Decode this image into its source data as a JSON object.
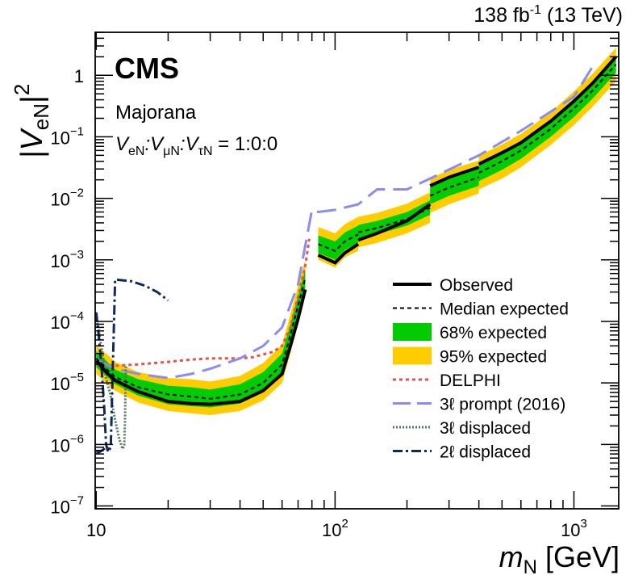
{
  "chart_data": {
    "type": "line",
    "lumi_label": {
      "main": "138 fb",
      "sup": "-1",
      "rest": " (13 TeV)"
    },
    "experiment": "CMS",
    "model_label": "Majorana",
    "coupling_label": {
      "p1": "V",
      "s1": "eN",
      "p2": ":V",
      "s2": "μN",
      "p3": ":V",
      "s3": "τN",
      "p4": " = 1:0:0"
    },
    "ylabel": {
      "main": "|V",
      "sub": "eN",
      "rest": "|",
      "sup": "2"
    },
    "xlabel": {
      "main": "m",
      "sub": "N",
      "rest": " [GeV]"
    },
    "xscale": "log",
    "yscale": "log",
    "xlim": [
      9.9,
      1540
    ],
    "ylim": [
      9e-08,
      5
    ],
    "x_ticks": [
      {
        "value": 10,
        "base": "10",
        "exp": ""
      },
      {
        "value": 100,
        "base": "10",
        "exp": "2"
      },
      {
        "value": 1000,
        "base": "10",
        "exp": "3"
      }
    ],
    "y_ticks": [
      {
        "value": 1e-07,
        "base": "10",
        "exp": "−7"
      },
      {
        "value": 1e-06,
        "base": "10",
        "exp": "−6"
      },
      {
        "value": 1e-05,
        "base": "10",
        "exp": "−5"
      },
      {
        "value": 0.0001,
        "base": "10",
        "exp": "−4"
      },
      {
        "value": 0.001,
        "base": "10",
        "exp": "−3"
      },
      {
        "value": 0.01,
        "base": "10",
        "exp": "−2"
      },
      {
        "value": 0.1,
        "base": "10",
        "exp": "−1"
      },
      {
        "value": 1,
        "base": "1",
        "exp": ""
      }
    ],
    "legend_position": "lower-right",
    "legend": [
      {
        "label": "Observed",
        "style": "solid-thick",
        "color": "#000000"
      },
      {
        "label": "Median expected",
        "style": "dashed-thin",
        "color": "#000000"
      },
      {
        "label": "68% expected",
        "style": "band",
        "color": "#00cc00"
      },
      {
        "label": "95% expected",
        "style": "band",
        "color": "#ffcc00"
      },
      {
        "label": "DELPHI",
        "style": "dotted",
        "color": "#e8524a"
      },
      {
        "label": "3ℓ prompt (2016)",
        "style": "long-dash",
        "color": "#8c8cf0"
      },
      {
        "label": "3ℓ displaced",
        "style": "fine-dotted",
        "color": "#4f7a55"
      },
      {
        "label": "2ℓ displaced",
        "style": "dash-dot",
        "color": "#0d2a5c"
      }
    ],
    "segments": [
      {
        "name": "low-mass",
        "x": [
          10,
          11,
          12,
          15,
          20,
          25,
          30,
          40,
          50,
          60,
          65,
          70,
          75
        ],
        "observed": [
          2.3e-05,
          1.5e-05,
          1.1e-05,
          7.2e-06,
          5e-06,
          4.6e-06,
          4.5e-06,
          5e-06,
          7.5e-06,
          1.4e-05,
          4e-05,
          0.00011,
          0.00033
        ],
        "expected": [
          2.5e-05,
          1.7e-05,
          1.25e-05,
          8.5e-06,
          6.5e-06,
          6e-06,
          5.5e-06,
          6.5e-06,
          1e-05,
          2e-05,
          6e-05,
          0.00018,
          0.0005
        ],
        "band68_lo": [
          1.8e-05,
          1.3e-05,
          9.5e-06,
          6.2e-06,
          4.5e-06,
          4.2e-06,
          4e-06,
          4.6e-06,
          7e-06,
          1.4e-05,
          4.2e-05,
          0.00012,
          0.00035
        ],
        "band68_hi": [
          3.3e-05,
          2.3e-05,
          1.65e-05,
          1.15e-05,
          9e-06,
          8.5e-06,
          7.8e-06,
          9.5e-06,
          1.5e-05,
          3e-05,
          9e-05,
          0.00026,
          0.0007
        ],
        "band95_lo": [
          1.4e-05,
          1e-05,
          7.5e-06,
          4.8e-06,
          3.5e-06,
          3.2e-06,
          3e-06,
          3.5e-06,
          5.2e-06,
          1e-05,
          3e-05,
          9e-05,
          0.00026
        ],
        "band95_hi": [
          4.2e-05,
          3e-05,
          2.2e-05,
          1.5e-05,
          1.2e-05,
          1.15e-05,
          1.05e-05,
          1.3e-05,
          2.1e-05,
          4.2e-05,
          0.00013,
          0.00038,
          0.001
        ]
      },
      {
        "name": "mid-mass",
        "x": [
          85,
          100,
          110,
          125
        ],
        "observed": [
          0.0012,
          0.0009,
          0.0013,
          0.0018
        ],
        "expected": [
          0.0018,
          0.0014,
          0.002,
          0.0026
        ],
        "band68_lo": [
          0.0013,
          0.001,
          0.00145,
          0.0019
        ],
        "band68_hi": [
          0.0025,
          0.002,
          0.0028,
          0.0036
        ],
        "band95_lo": [
          0.001,
          0.00075,
          0.0011,
          0.0014
        ],
        "band95_hi": [
          0.0034,
          0.0027,
          0.0038,
          0.005
        ]
      },
      {
        "name": "high-mass-1",
        "x": [
          125,
          150,
          200,
          250
        ],
        "observed": [
          0.0021,
          0.0027,
          0.0043,
          0.008
        ],
        "expected": [
          0.0028,
          0.0033,
          0.0046,
          0.007
        ],
        "band68_lo": [
          0.0022,
          0.0026,
          0.0036,
          0.0054
        ],
        "band68_hi": [
          0.0037,
          0.0043,
          0.006,
          0.0093
        ],
        "band95_lo": [
          0.0016,
          0.0019,
          0.0027,
          0.004
        ],
        "band95_hi": [
          0.005,
          0.0058,
          0.0082,
          0.0125
        ]
      },
      {
        "name": "high-mass-2",
        "x": [
          250,
          300,
          400
        ],
        "observed": [
          0.016,
          0.022,
          0.032
        ],
        "expected": [
          0.011,
          0.015,
          0.022
        ],
        "band68_lo": [
          0.008,
          0.011,
          0.016
        ],
        "band68_hi": [
          0.015,
          0.021,
          0.03
        ],
        "band95_lo": [
          0.0058,
          0.008,
          0.012
        ],
        "band95_hi": [
          0.021,
          0.029,
          0.041
        ]
      },
      {
        "name": "high-mass-3",
        "x": [
          400,
          500,
          600,
          800,
          1000,
          1200,
          1500
        ],
        "observed": [
          0.036,
          0.055,
          0.08,
          0.18,
          0.38,
          0.75,
          2.0
        ],
        "expected": [
          0.026,
          0.04,
          0.06,
          0.135,
          0.29,
          0.57,
          1.5
        ],
        "band68_lo": [
          0.019,
          0.029,
          0.044,
          0.1,
          0.21,
          0.42,
          1.1
        ],
        "band68_hi": [
          0.036,
          0.055,
          0.082,
          0.185,
          0.4,
          0.78,
          2.05
        ],
        "band95_lo": [
          0.014,
          0.021,
          0.032,
          0.074,
          0.155,
          0.31,
          0.8
        ],
        "band95_hi": [
          0.049,
          0.075,
          0.112,
          0.25,
          0.55,
          1.07,
          2.8
        ]
      }
    ],
    "delphi": {
      "x": [
        10,
        12,
        15,
        20,
        25,
        30,
        40,
        45,
        55,
        60,
        65,
        70,
        75,
        78
      ],
      "y": [
        2e-05,
        1.9e-05,
        2e-05,
        2.2e-05,
        2.4e-05,
        2.5e-05,
        2.5e-05,
        2.6e-05,
        3.2e-05,
        4e-05,
        8e-05,
        0.00025,
        0.0008,
        0.0022
      ]
    },
    "prompt_2016": {
      "x": [
        10,
        12,
        15,
        20,
        25,
        30,
        40,
        50,
        60,
        70,
        80,
        85,
        100,
        125,
        150,
        200,
        250,
        400,
        600,
        1000,
        1200
      ],
      "y": [
        2.4e-05,
        1.7e-05,
        1.4e-05,
        1.2e-05,
        1.4e-05,
        1.7e-05,
        2.5e-05,
        4e-05,
        8e-05,
        0.0004,
        0.0065,
        0.006,
        0.0065,
        0.008,
        0.014,
        0.014,
        0.021,
        0.05,
        0.125,
        0.45,
        1.4
      ]
    },
    "displaced_3l": {
      "x": [
        10,
        10.2,
        10.4,
        10.7,
        11,
        11.5,
        12,
        12.5,
        12.9,
        13.1,
        13.2,
        13.3
      ],
      "y": [
        0.00012,
        8e-05,
        5e-05,
        2.5e-05,
        1.2e-05,
        6e-06,
        2.5e-06,
        1.2e-06,
        8.5e-07,
        9.5e-07,
        2.5e-06,
        2e-05
      ]
    },
    "displaced_2l": {
      "x": [
        10,
        10.2,
        10.5,
        10.8,
        11,
        11.2,
        11.5,
        12,
        14,
        16,
        18,
        20
      ],
      "y": [
        0.00014,
        7e-05,
        2e-05,
        4e-06,
        1e-06,
        7.5e-07,
        9e-07,
        0.00048,
        0.00045,
        0.00038,
        0.0003,
        0.00022
      ]
    },
    "displaced_2l_start": {
      "x": [
        10,
        10.3,
        10.6,
        11,
        11.3
      ],
      "y": [
        7.5e-07,
        7.5e-07,
        8e-07,
        9e-07,
        8.5e-07
      ]
    }
  }
}
